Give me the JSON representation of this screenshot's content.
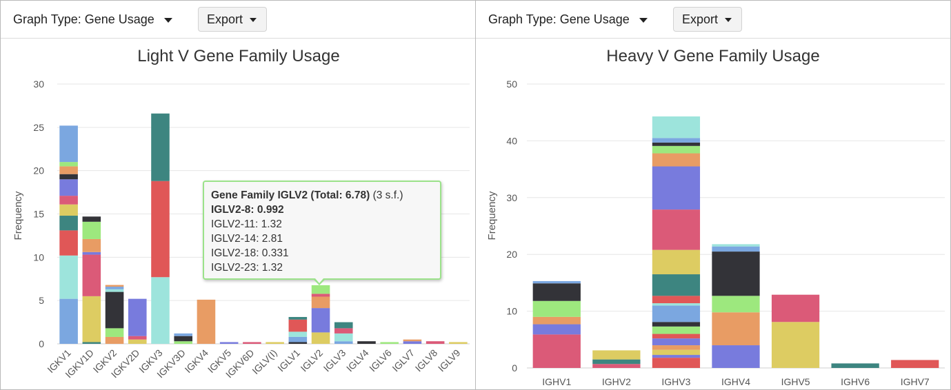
{
  "left_panel": {
    "graph_type_label": "Graph Type: Gene Usage",
    "export_label": "Export"
  },
  "right_panel": {
    "graph_type_label": "Graph Type: Gene Usage",
    "export_label": "Export"
  },
  "tooltip": {
    "title": "Gene Family IGLV2 (Total: 6.78)",
    "title_suffix": " (3 s.f.)",
    "highlight": "IGLV2-8: 0.992",
    "lines": [
      "IGLV2-11: 1.32",
      "IGLV2-14: 2.81",
      "IGLV2-18: 0.331",
      "IGLV2-23: 1.32"
    ]
  },
  "chart_data": [
    {
      "type": "bar",
      "stacked": true,
      "title": "Light V Gene Family Usage",
      "xlabel": "",
      "ylabel": "Frequency",
      "ylim": [
        0,
        30
      ],
      "yticks": [
        0,
        5,
        10,
        15,
        20,
        25,
        30
      ],
      "grid": true,
      "categories": [
        "IGKV1",
        "IGKV1D",
        "IGKV2",
        "IGKV2D",
        "IGKV3",
        "IGKV3D",
        "IGKV4",
        "IGKV5",
        "IGKV6D",
        "IGLV(I)",
        "IGLV1",
        "IGLV2",
        "IGLV3",
        "IGLV4",
        "IGLV6",
        "IGLV7",
        "IGLV8",
        "IGLV9"
      ],
      "stacks": [
        [
          [
            "#7ba7e0",
            5.2
          ],
          [
            "#9de4dc",
            5.0
          ],
          [
            "#e05757",
            2.9
          ],
          [
            "#3d8580",
            1.7
          ],
          [
            "#ddcc62",
            1.3
          ],
          [
            "#db5a78",
            1.0
          ],
          [
            "#787bdd",
            1.9
          ],
          [
            "#333338",
            0.6
          ],
          [
            "#e89c64",
            0.9
          ],
          [
            "#9de87e",
            0.5
          ],
          [
            "#7ba7e0",
            4.2
          ]
        ],
        [
          [
            "#3d8580",
            0.2
          ],
          [
            "#ddcc62",
            5.3
          ],
          [
            "#db5a78",
            4.8
          ],
          [
            "#787bdd",
            0.3
          ],
          [
            "#e89c64",
            1.5
          ],
          [
            "#9de87e",
            2.0
          ],
          [
            "#333338",
            0.6
          ]
        ],
        [
          [
            "#e89c64",
            0.8
          ],
          [
            "#9de87e",
            1.0
          ],
          [
            "#333338",
            4.2
          ],
          [
            "#9de4dc",
            0.3
          ],
          [
            "#7ba7e0",
            0.3
          ],
          [
            "#e89c64",
            0.2
          ]
        ],
        [
          [
            "#ddcc62",
            0.5
          ],
          [
            "#db5a78",
            0.4
          ],
          [
            "#787bdd",
            4.3
          ]
        ],
        [
          [
            "#9de4dc",
            7.7
          ],
          [
            "#e05757",
            11.1
          ],
          [
            "#3d8580",
            7.8
          ]
        ],
        [
          [
            "#9de87e",
            0.3
          ],
          [
            "#333338",
            0.6
          ],
          [
            "#7ba7e0",
            0.3
          ]
        ],
        [
          [
            "#e89c64",
            5.1
          ]
        ],
        [
          [
            "#787bdd",
            0.2
          ]
        ],
        [
          [
            "#db5a78",
            0.2
          ]
        ],
        [
          [
            "#ddcc62",
            0.2
          ]
        ],
        [
          [
            "#333338",
            0.2
          ],
          [
            "#7ba7e0",
            0.6
          ],
          [
            "#9de4dc",
            0.6
          ],
          [
            "#e05757",
            1.4
          ],
          [
            "#3d8580",
            0.3
          ]
        ],
        [
          [
            "#ddcc62",
            1.32
          ],
          [
            "#787bdd",
            2.81
          ],
          [
            "#e89c64",
            1.32
          ],
          [
            "#db5a78",
            0.331
          ],
          [
            "#9de87e",
            0.992
          ]
        ],
        [
          [
            "#7ba7e0",
            0.3
          ],
          [
            "#9de4dc",
            0.9
          ],
          [
            "#db5a78",
            0.6
          ],
          [
            "#3d8580",
            0.7
          ]
        ],
        [
          [
            "#333338",
            0.3
          ]
        ],
        [
          [
            "#9de87e",
            0.2
          ]
        ],
        [
          [
            "#787bdd",
            0.3
          ],
          [
            "#e89c64",
            0.2
          ]
        ],
        [
          [
            "#db5a78",
            0.3
          ]
        ],
        [
          [
            "#ddcc62",
            0.2
          ]
        ]
      ]
    },
    {
      "type": "bar",
      "stacked": true,
      "title": "Heavy V Gene Family Usage",
      "xlabel": "",
      "ylabel": "Frequency",
      "ylim": [
        0,
        50
      ],
      "yticks": [
        0,
        10,
        20,
        30,
        40,
        50
      ],
      "grid": true,
      "categories": [
        "IGHV1",
        "IGHV2",
        "IGHV3",
        "IGHV4",
        "IGHV5",
        "IGHV6",
        "IGHV7"
      ],
      "stacks": [
        [
          [
            "#db5a78",
            5.9
          ],
          [
            "#787bdd",
            1.8
          ],
          [
            "#e89c64",
            1.3
          ],
          [
            "#9de87e",
            2.8
          ],
          [
            "#333338",
            3.1
          ],
          [
            "#7ba7e0",
            0.4
          ]
        ],
        [
          [
            "#db5a78",
            0.7
          ],
          [
            "#3d8580",
            0.8
          ],
          [
            "#ddcc62",
            1.6
          ]
        ],
        [
          [
            "#e05757",
            1.8
          ],
          [
            "#787bdd",
            0.5
          ],
          [
            "#ddcc62",
            0.9
          ],
          [
            "#e89c64",
            0.8
          ],
          [
            "#787bdd",
            1.2
          ],
          [
            "#e05757",
            0.8
          ],
          [
            "#9de87e",
            1.3
          ],
          [
            "#333338",
            0.8
          ],
          [
            "#7ba7e0",
            2.9
          ],
          [
            "#9de4dc",
            0.4
          ],
          [
            "#e05757",
            1.3
          ],
          [
            "#3d8580",
            3.8
          ],
          [
            "#ddcc62",
            4.3
          ],
          [
            "#db5a78",
            7.1
          ],
          [
            "#787bdd",
            7.6
          ],
          [
            "#e89c64",
            2.3
          ],
          [
            "#9de87e",
            1.3
          ],
          [
            "#333338",
            0.6
          ],
          [
            "#7ba7e0",
            0.8
          ],
          [
            "#9de4dc",
            3.8
          ]
        ],
        [
          [
            "#787bdd",
            4.0
          ],
          [
            "#e89c64",
            5.8
          ],
          [
            "#9de87e",
            2.9
          ],
          [
            "#333338",
            7.8
          ],
          [
            "#7ba7e0",
            0.9
          ],
          [
            "#9de4dc",
            0.4
          ]
        ],
        [
          [
            "#ddcc62",
            8.1
          ],
          [
            "#db5a78",
            4.8
          ]
        ],
        [
          [
            "#3d8580",
            0.8
          ]
        ],
        [
          [
            "#e05757",
            1.4
          ]
        ]
      ]
    }
  ]
}
